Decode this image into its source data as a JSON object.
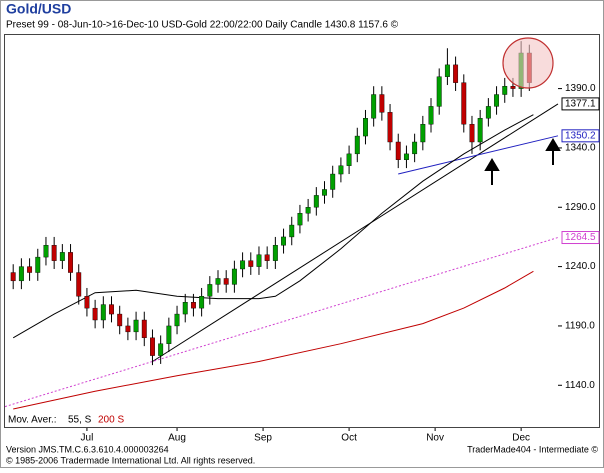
{
  "chart_data": {
    "type": "candlestick",
    "title": "Gold/USD",
    "subtitle": "Preset 99 - 08-Jun-10->16-Dec-10 USD-Gold 22:00/22:00 Daily Candle 1430.8 1157.6 ©",
    "x": [
      0,
      2,
      4,
      6,
      8,
      10,
      12,
      14,
      16,
      18,
      20,
      22,
      24,
      26,
      28,
      30,
      32,
      34,
      36,
      38,
      40,
      42,
      44,
      46,
      48,
      50,
      52,
      54,
      56,
      58,
      60,
      62,
      64,
      66,
      68,
      70,
      72,
      74,
      76,
      78,
      80,
      82,
      84,
      86,
      88,
      90,
      92,
      94,
      96,
      98,
      100,
      102,
      104,
      106,
      108,
      110,
      112,
      114,
      116,
      118,
      120,
      122,
      124,
      126
    ],
    "open": [
      1235,
      1228,
      1240,
      1235,
      1248,
      1258,
      1245,
      1252,
      1235,
      1215,
      1205,
      1195,
      1208,
      1200,
      1190,
      1185,
      1195,
      1180,
      1165,
      1175,
      1190,
      1200,
      1210,
      1205,
      1215,
      1225,
      1230,
      1225,
      1238,
      1245,
      1240,
      1250,
      1245,
      1258,
      1265,
      1275,
      1285,
      1290,
      1300,
      1305,
      1318,
      1325,
      1335,
      1350,
      1365,
      1385,
      1370,
      1345,
      1330,
      1335,
      1345,
      1360,
      1375,
      1400,
      1410,
      1395,
      1360,
      1345,
      1365,
      1375,
      1385,
      1392,
      1390,
      1420
    ],
    "high": [
      1242,
      1247,
      1247,
      1255,
      1265,
      1265,
      1259,
      1259,
      1242,
      1222,
      1212,
      1215,
      1215,
      1207,
      1197,
      1202,
      1202,
      1187,
      1182,
      1197,
      1207,
      1217,
      1217,
      1222,
      1232,
      1237,
      1237,
      1245,
      1252,
      1252,
      1257,
      1257,
      1265,
      1272,
      1282,
      1292,
      1297,
      1307,
      1312,
      1325,
      1332,
      1342,
      1357,
      1372,
      1392,
      1392,
      1377,
      1352,
      1342,
      1352,
      1367,
      1382,
      1407,
      1424,
      1417,
      1402,
      1367,
      1372,
      1382,
      1392,
      1399,
      1399,
      1430,
      1427
    ],
    "low": [
      1221,
      1221,
      1228,
      1228,
      1241,
      1238,
      1238,
      1228,
      1208,
      1198,
      1188,
      1188,
      1193,
      1183,
      1178,
      1178,
      1173,
      1157,
      1158,
      1168,
      1183,
      1193,
      1198,
      1198,
      1208,
      1218,
      1218,
      1218,
      1231,
      1233,
      1233,
      1238,
      1238,
      1251,
      1258,
      1268,
      1278,
      1283,
      1293,
      1298,
      1311,
      1318,
      1328,
      1343,
      1358,
      1363,
      1338,
      1323,
      1323,
      1328,
      1338,
      1353,
      1368,
      1393,
      1388,
      1353,
      1335,
      1338,
      1358,
      1368,
      1378,
      1383,
      1383,
      1388
    ],
    "close": [
      1228,
      1240,
      1235,
      1248,
      1258,
      1245,
      1252,
      1235,
      1215,
      1205,
      1195,
      1208,
      1200,
      1190,
      1185,
      1195,
      1180,
      1165,
      1175,
      1190,
      1200,
      1210,
      1205,
      1215,
      1225,
      1230,
      1225,
      1238,
      1245,
      1240,
      1250,
      1245,
      1258,
      1265,
      1275,
      1285,
      1290,
      1300,
      1305,
      1318,
      1325,
      1335,
      1350,
      1365,
      1385,
      1370,
      1345,
      1330,
      1335,
      1345,
      1360,
      1375,
      1400,
      1410,
      1395,
      1360,
      1345,
      1365,
      1375,
      1385,
      1392,
      1390,
      1420,
      1395
    ],
    "up_color": "#00a000",
    "down_color": "#c00000",
    "legend_label": "Mov. Aver.:",
    "series": [
      {
        "name": "55, S",
        "color": "#000000",
        "x": [
          0,
          10,
          20,
          30,
          40,
          50,
          60,
          64,
          70,
          80,
          90,
          100,
          110,
          120,
          127
        ],
        "values": [
          1180,
          1200,
          1218,
          1220,
          1215,
          1213,
          1213,
          1215,
          1228,
          1255,
          1285,
          1312,
          1335,
          1355,
          1368
        ]
      },
      {
        "name": "200 S",
        "color": "#c00000",
        "x": [
          0,
          20,
          40,
          60,
          80,
          100,
          110,
          120,
          127
        ],
        "values": [
          1120,
          1135,
          1148,
          1160,
          1175,
          1192,
          1205,
          1222,
          1236
        ]
      }
    ],
    "trendlines": [
      {
        "color": "#000000",
        "x": [
          34,
          133
        ],
        "values": [
          1160,
          1377.1
        ]
      },
      {
        "color": "#2020c0",
        "x": [
          94,
          133
        ],
        "values": [
          1318,
          1350.2
        ]
      },
      {
        "color": "#d040d0",
        "x": [
          -2,
          133
        ],
        "values": [
          1122,
          1264.5
        ]
      }
    ],
    "xlim": [
      -2,
      133
    ],
    "xticks": [
      {
        "value": 18,
        "label": "Jul"
      },
      {
        "value": 40,
        "label": "Aug"
      },
      {
        "value": 61,
        "label": "Sep"
      },
      {
        "value": 82,
        "label": "Oct"
      },
      {
        "value": 103,
        "label": "Nov"
      },
      {
        "value": 124,
        "label": "Dec"
      }
    ],
    "ylim": [
      1104,
      1436
    ],
    "yticks": [
      {
        "value": 1140,
        "label": "1140.0"
      },
      {
        "value": 1190,
        "label": "1190.0"
      },
      {
        "value": 1240,
        "label": "1240.0"
      },
      {
        "value": 1290,
        "label": "1290.0"
      },
      {
        "value": 1340,
        "label": "1340.0"
      },
      {
        "value": 1390,
        "label": "1390.0"
      }
    ],
    "footer_version": "Version JMS.TM.C.6.3.610.4.000003264",
    "footer_copyright": "© 1985-2006 Tradermade International Ltd.  All rights reserved.",
    "footer_right": "TraderMade404 - Intermediate ©"
  }
}
